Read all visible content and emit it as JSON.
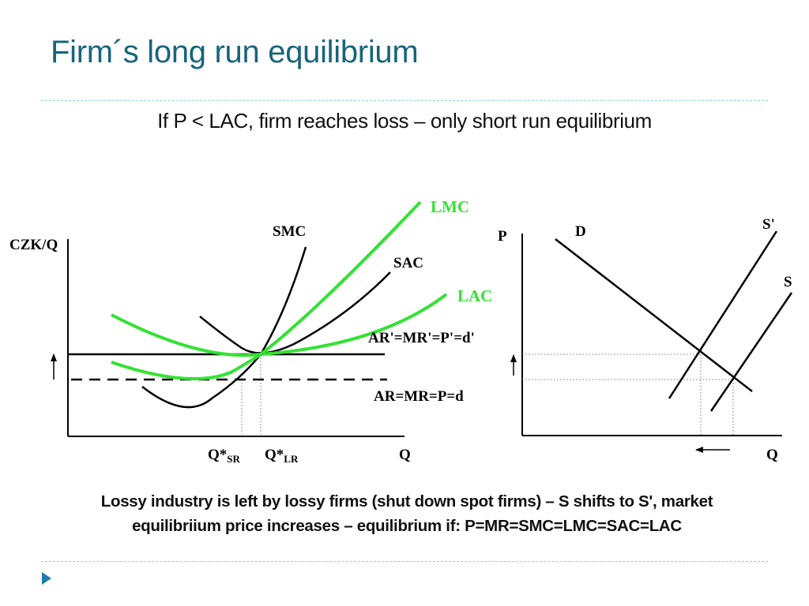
{
  "slide": {
    "title": "Firm´s long run equilibrium",
    "subtitle": "If P < LAC, firm reaches loss – only short run equilibrium",
    "caption_line1": "Lossy industry is left by lossy firms (shut down spot firms) – S shifts to S', market",
    "caption_line2": "equilibriium price increases – equilibrium if: P=MR=SMC=LMC=SAC=LAC"
  },
  "firm_graph": {
    "y_axis_label": "CZK/Q",
    "x_axis_label": "Q",
    "curves": {
      "smc": "SMC",
      "sac": "SAC",
      "lmc": "LMC",
      "lac": "LAC"
    },
    "price_lines": {
      "new": "AR'=MR'=P'=d'",
      "old": "AR=MR=P=d"
    },
    "quantities": {
      "q_sr_main": "Q*",
      "q_sr_sub": "SR",
      "q_lr_main": "Q*",
      "q_lr_sub": "LR"
    }
  },
  "market_graph": {
    "y_axis_label": "P",
    "x_axis_label": "Q",
    "curves": {
      "demand": "D",
      "supply_new": "S'",
      "supply_old": "S"
    }
  },
  "colors": {
    "title": "#17657d",
    "rule": "#8fcde0",
    "lr_curves": "#33e233",
    "bullet": "#1d7fb0"
  },
  "icons": {
    "bullet": "triangle-right-icon",
    "price_rise": "arrow-up-icon",
    "supply_shift": "arrow-left-icon"
  }
}
